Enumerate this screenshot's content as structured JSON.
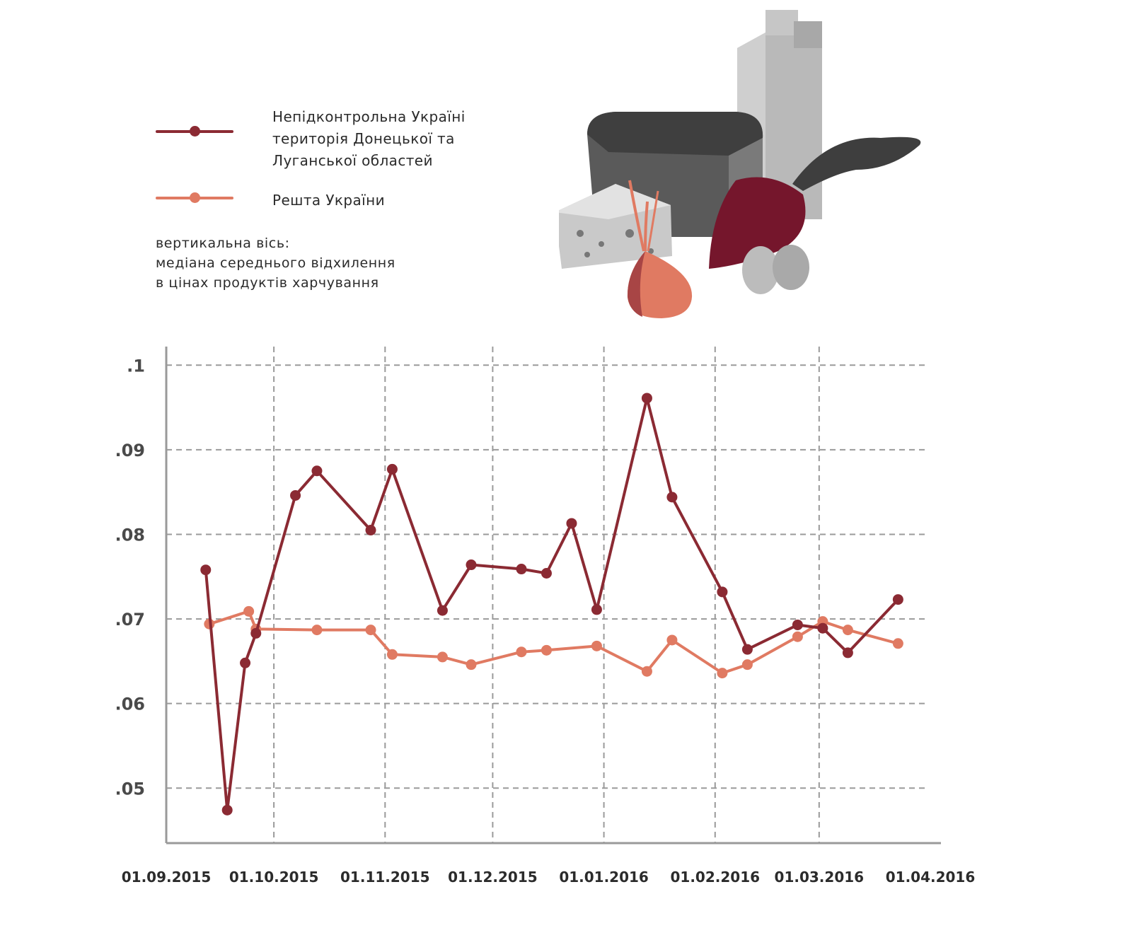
{
  "legend": {
    "series_a_lines": [
      "Непідконтрольна Україні",
      "територія Донецької та",
      "Луганської областей"
    ],
    "series_b_label": "Решта України",
    "axis_note_lines": [
      "вертикальна вісь:",
      "медіана середнього відхилення",
      "в цінах продуктів харчування"
    ]
  },
  "illustration": {
    "items": [
      "milk-carton-icon",
      "bread-loaf-icon",
      "cheese-icon",
      "onion-icon",
      "beet-icon",
      "eggs-icon"
    ]
  },
  "colors": {
    "series_a": "#8b2a33",
    "series_b": "#e07a62",
    "grid": "#9a9a9a",
    "axis": "#9a9a9a",
    "text": "#2b2b2b"
  },
  "chart_data": {
    "type": "line",
    "x_ticks": [
      "01.09.2015",
      "01.10.2015",
      "01.11.2015",
      "01.12.2015",
      "01.01.2016",
      "01.02.2016",
      "01.03.2016",
      "01.04.2016"
    ],
    "y_ticks": [
      ".05",
      ".06",
      ".07",
      ".08",
      ".09",
      ".1"
    ],
    "y_tick_values": [
      0.05,
      0.06,
      0.07,
      0.08,
      0.09,
      0.1
    ],
    "ylim": [
      0.0435,
      0.1022
    ],
    "xlim": [
      "2015-09-01",
      "2016-04-01"
    ],
    "grid": true,
    "series": [
      {
        "name": "Непідконтрольна Україні територія Донецької та Луганської областей",
        "points": [
          [
            "2015-09-12",
            0.0758
          ],
          [
            "2015-09-18",
            0.0474
          ],
          [
            "2015-09-23",
            0.0648
          ],
          [
            "2015-09-26",
            0.0683
          ],
          [
            "2015-10-07",
            0.0846
          ],
          [
            "2015-10-13",
            0.0875
          ],
          [
            "2015-10-28",
            0.0805
          ],
          [
            "2015-11-03",
            0.0877
          ],
          [
            "2015-11-17",
            0.071
          ],
          [
            "2015-11-25",
            0.0764
          ],
          [
            "2015-12-09",
            0.0759
          ],
          [
            "2015-12-16",
            0.0754
          ],
          [
            "2015-12-23",
            0.0813
          ],
          [
            "2015-12-30",
            0.0711
          ],
          [
            "2016-01-13",
            0.0961
          ],
          [
            "2016-01-20",
            0.0844
          ],
          [
            "2016-02-03",
            0.0732
          ],
          [
            "2016-02-10",
            0.0664
          ],
          [
            "2016-02-24",
            0.0693
          ],
          [
            "2016-03-02",
            0.0689
          ],
          [
            "2016-03-09",
            0.066
          ],
          [
            "2016-03-23",
            0.0723
          ]
        ]
      },
      {
        "name": "Решта України",
        "points": [
          [
            "2015-09-13",
            0.0694
          ],
          [
            "2015-09-24",
            0.0709
          ],
          [
            "2015-09-26",
            0.0688
          ],
          [
            "2015-10-13",
            0.0687
          ],
          [
            "2015-10-28",
            0.0687
          ],
          [
            "2015-11-03",
            0.0658
          ],
          [
            "2015-11-17",
            0.0655
          ],
          [
            "2015-11-25",
            0.0646
          ],
          [
            "2015-12-09",
            0.0661
          ],
          [
            "2015-12-16",
            0.0663
          ],
          [
            "2015-12-30",
            0.0668
          ],
          [
            "2016-01-13",
            0.0638
          ],
          [
            "2016-01-20",
            0.0675
          ],
          [
            "2016-02-03",
            0.0636
          ],
          [
            "2016-02-10",
            0.0646
          ],
          [
            "2016-02-24",
            0.0679
          ],
          [
            "2016-03-02",
            0.0697
          ],
          [
            "2016-03-09",
            0.0687
          ],
          [
            "2016-03-23",
            0.0671
          ]
        ]
      }
    ]
  }
}
